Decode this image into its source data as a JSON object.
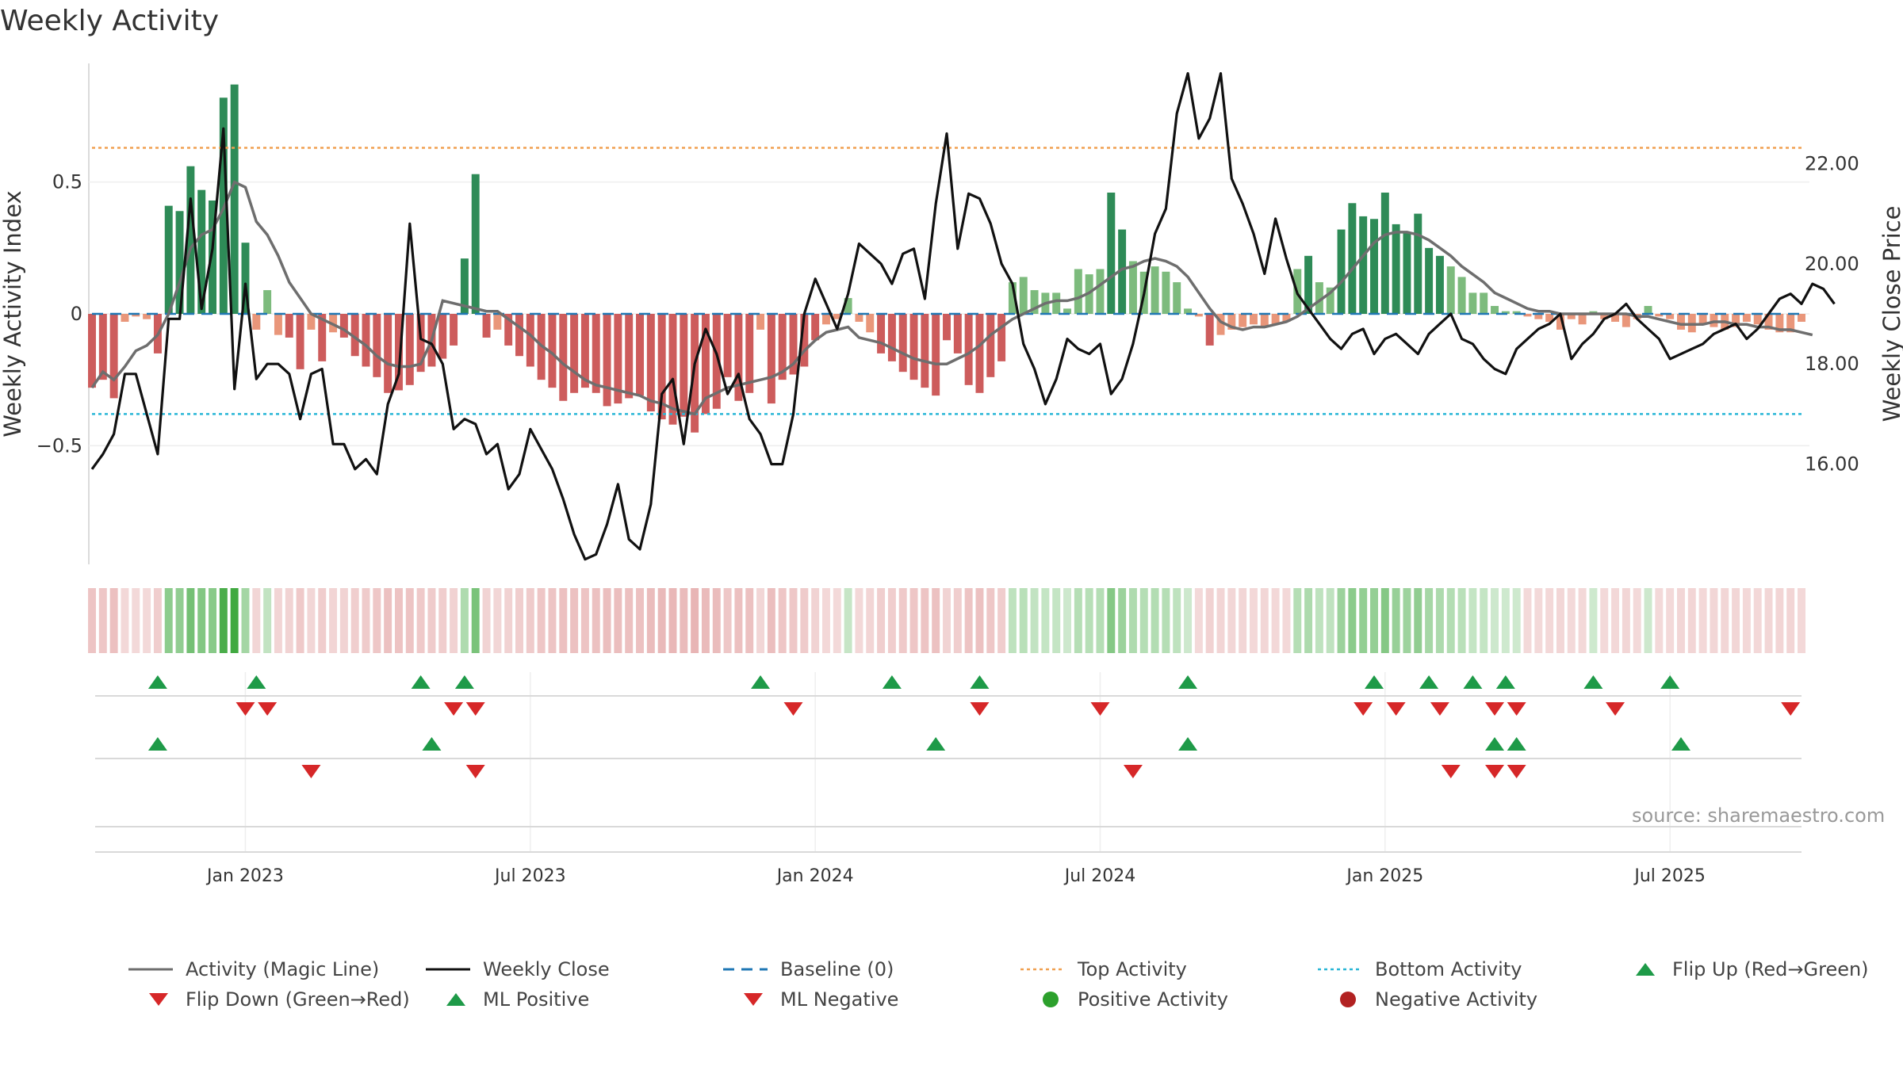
{
  "title": "Weekly Activity",
  "source": "source: sharemaestro.com",
  "colors": {
    "pos_dark": "#2e8b57",
    "pos_light": "#7dbb7d",
    "neg_dark": "#cd5c5c",
    "neg_light": "#e9967a",
    "magic_line": "#6e6e6e",
    "close_line": "#111111",
    "baseline": "#1f77b4",
    "top": "#f0a050",
    "bottom": "#29b6d6",
    "flip_up": "#1e9a48",
    "flip_down": "#d62728",
    "positive": "#2ca02c",
    "negative": "#b22222"
  },
  "chart_data": {
    "type": "bar",
    "title": "Weekly Activity",
    "ylabel": "Weekly Activity Index",
    "y2label": "Weekly Close Price",
    "ylim": [
      -0.95,
      0.95
    ],
    "y2lim": [
      14.0,
      24.0
    ],
    "y_ticks": [
      {
        "v": 0.5,
        "label": "0.5"
      },
      {
        "v": 0,
        "label": "0"
      },
      {
        "v": -0.5,
        "label": "−0.5"
      }
    ],
    "y2_ticks": [
      {
        "v": 22,
        "label": "22.00"
      },
      {
        "v": 20,
        "label": "20.00"
      },
      {
        "v": 18,
        "label": "18.00"
      },
      {
        "v": 16,
        "label": "16.00"
      }
    ],
    "x_ticks": [
      {
        "w": 14,
        "label": "Jan 2023"
      },
      {
        "w": 40,
        "label": "Jul 2023"
      },
      {
        "w": 66,
        "label": "Jan 2024"
      },
      {
        "w": 92,
        "label": "Jul 2024"
      },
      {
        "w": 118,
        "label": "Jan 2025"
      },
      {
        "w": 144,
        "label": "Jul 2025"
      }
    ],
    "n_weeks": 157,
    "top_activity": 0.63,
    "bottom_activity": -0.38,
    "activity": [
      -0.28,
      -0.25,
      -0.32,
      -0.03,
      -0.01,
      -0.02,
      -0.15,
      0.41,
      0.39,
      0.56,
      0.47,
      0.43,
      0.82,
      0.87,
      0.27,
      -0.06,
      0.09,
      -0.08,
      -0.09,
      -0.21,
      -0.06,
      -0.18,
      -0.07,
      -0.09,
      -0.16,
      -0.2,
      -0.24,
      -0.3,
      -0.29,
      -0.27,
      -0.22,
      -0.2,
      -0.17,
      -0.12,
      0.21,
      0.53,
      -0.09,
      -0.06,
      -0.12,
      -0.16,
      -0.2,
      -0.25,
      -0.28,
      -0.33,
      -0.3,
      -0.28,
      -0.3,
      -0.35,
      -0.34,
      -0.32,
      -0.31,
      -0.37,
      -0.4,
      -0.42,
      -0.39,
      -0.45,
      -0.38,
      -0.36,
      -0.24,
      -0.33,
      -0.3,
      -0.06,
      -0.34,
      -0.25,
      -0.23,
      -0.2,
      -0.1,
      -0.04,
      -0.02,
      0.06,
      -0.03,
      -0.07,
      -0.15,
      -0.18,
      -0.22,
      -0.25,
      -0.28,
      -0.31,
      -0.1,
      -0.15,
      -0.27,
      -0.3,
      -0.24,
      -0.18,
      0.12,
      0.14,
      0.09,
      0.08,
      0.08,
      0.02,
      0.17,
      0.15,
      0.17,
      0.46,
      0.32,
      0.2,
      0.16,
      0.18,
      0.16,
      0.12,
      0.02,
      -0.01,
      -0.12,
      -0.08,
      -0.06,
      -0.05,
      -0.04,
      -0.05,
      -0.04,
      -0.03,
      0.17,
      0.22,
      0.12,
      0.1,
      0.32,
      0.42,
      0.37,
      0.36,
      0.46,
      0.34,
      0.31,
      0.38,
      0.25,
      0.22,
      0.18,
      0.14,
      0.08,
      0.08,
      0.03,
      0.01,
      0.01,
      -0.01,
      -0.02,
      -0.03,
      -0.06,
      -0.02,
      -0.04,
      0.01,
      -0.02,
      -0.03,
      -0.05,
      -0.02,
      0.03,
      -0.01,
      -0.02,
      -0.06,
      -0.07,
      -0.04,
      -0.05,
      -0.06,
      -0.05,
      -0.03,
      -0.04,
      -0.06,
      -0.07,
      -0.07,
      -0.03
    ],
    "magic_line": [
      -0.28,
      -0.22,
      -0.25,
      -0.2,
      -0.14,
      -0.12,
      -0.08,
      0.0,
      0.12,
      0.25,
      0.3,
      0.32,
      0.4,
      0.5,
      0.48,
      0.35,
      0.3,
      0.22,
      0.12,
      0.06,
      0.0,
      -0.02,
      -0.04,
      -0.06,
      -0.09,
      -0.12,
      -0.16,
      -0.19,
      -0.2,
      -0.2,
      -0.19,
      -0.1,
      0.05,
      0.04,
      0.03,
      0.02,
      0.01,
      0.01,
      -0.02,
      -0.05,
      -0.08,
      -0.12,
      -0.15,
      -0.19,
      -0.22,
      -0.25,
      -0.27,
      -0.28,
      -0.29,
      -0.3,
      -0.31,
      -0.33,
      -0.34,
      -0.36,
      -0.37,
      -0.38,
      -0.32,
      -0.3,
      -0.28,
      -0.27,
      -0.26,
      -0.25,
      -0.24,
      -0.22,
      -0.19,
      -0.14,
      -0.1,
      -0.07,
      -0.06,
      -0.05,
      -0.09,
      -0.1,
      -0.11,
      -0.13,
      -0.15,
      -0.17,
      -0.18,
      -0.19,
      -0.19,
      -0.17,
      -0.15,
      -0.12,
      -0.08,
      -0.05,
      -0.02,
      0.0,
      0.02,
      0.04,
      0.05,
      0.05,
      0.06,
      0.08,
      0.11,
      0.14,
      0.17,
      0.18,
      0.2,
      0.21,
      0.2,
      0.18,
      0.14,
      0.08,
      0.02,
      -0.03,
      -0.05,
      -0.06,
      -0.05,
      -0.05,
      -0.04,
      -0.03,
      -0.01,
      0.02,
      0.05,
      0.08,
      0.12,
      0.17,
      0.22,
      0.27,
      0.3,
      0.31,
      0.31,
      0.3,
      0.28,
      0.25,
      0.22,
      0.18,
      0.15,
      0.12,
      0.08,
      0.06,
      0.04,
      0.02,
      0.01,
      0.01,
      0.0,
      0.0,
      0.0,
      0.0,
      0.0,
      0.0,
      0.0,
      -0.01,
      -0.01,
      -0.02,
      -0.03,
      -0.04,
      -0.04,
      -0.04,
      -0.03,
      -0.03,
      -0.04,
      -0.04,
      -0.05,
      -0.05,
      -0.06,
      -0.06,
      -0.07,
      -0.08
    ],
    "weekly_close": [
      15.9,
      16.2,
      16.6,
      17.8,
      17.8,
      17.0,
      16.2,
      18.9,
      18.9,
      21.3,
      19.1,
      20.3,
      22.7,
      17.5,
      19.6,
      17.7,
      18.0,
      18.0,
      17.8,
      16.9,
      17.8,
      17.9,
      16.4,
      16.4,
      15.9,
      16.1,
      15.8,
      17.2,
      17.8,
      20.8,
      18.5,
      18.4,
      18.0,
      16.7,
      16.9,
      16.8,
      16.2,
      16.4,
      15.5,
      15.8,
      16.7,
      16.3,
      15.9,
      15.3,
      14.6,
      14.1,
      14.2,
      14.8,
      15.6,
      14.5,
      14.3,
      15.2,
      17.4,
      17.7,
      16.4,
      18.0,
      18.7,
      18.2,
      17.4,
      17.8,
      16.9,
      16.6,
      16.0,
      16.0,
      17.0,
      19.0,
      19.7,
      19.2,
      18.7,
      19.4,
      20.4,
      20.2,
      20.0,
      19.6,
      20.2,
      20.3,
      19.3,
      21.2,
      22.6,
      20.3,
      21.4,
      21.3,
      20.8,
      20.0,
      19.6,
      18.4,
      17.9,
      17.2,
      17.7,
      18.5,
      18.3,
      18.2,
      18.4,
      17.4,
      17.7,
      18.4,
      19.4,
      20.6,
      21.1,
      23.0,
      23.8,
      22.5,
      22.9,
      23.8,
      21.7,
      21.2,
      20.6,
      19.8,
      20.9,
      20.1,
      19.4,
      19.1,
      18.8,
      18.5,
      18.3,
      18.6,
      18.7,
      18.2,
      18.5,
      18.6,
      18.4,
      18.2,
      18.6,
      18.8,
      19.0,
      18.5,
      18.4,
      18.1,
      17.9,
      17.8,
      18.3,
      18.5,
      18.7,
      18.8,
      19.0,
      18.1,
      18.4,
      18.6,
      18.9,
      19.0,
      19.2,
      18.9,
      18.7,
      18.5,
      18.1,
      18.2,
      18.3,
      18.4,
      18.6,
      18.7,
      18.8,
      18.5,
      18.7,
      19.0,
      19.3,
      19.4,
      19.2,
      19.6,
      19.5,
      19.2
    ],
    "flip_up": [
      6,
      15,
      30,
      34,
      61,
      73,
      81,
      100,
      117,
      122,
      126,
      129,
      137,
      144
    ],
    "flip_down": [
      14,
      16,
      33,
      35,
      64,
      81,
      92,
      116,
      119,
      123,
      128,
      130,
      139,
      155
    ],
    "ml_positive": [
      6,
      31,
      77,
      100,
      128,
      130,
      145
    ],
    "ml_negative": [
      20,
      35,
      95,
      124,
      128,
      130
    ]
  },
  "legend": [
    {
      "key": "magic",
      "label": "Activity (Magic Line)"
    },
    {
      "key": "close",
      "label": "Weekly Close"
    },
    {
      "key": "baseline",
      "label": "Baseline (0)"
    },
    {
      "key": "top",
      "label": "Top Activity"
    },
    {
      "key": "bottom",
      "label": "Bottom Activity"
    },
    {
      "key": "flipup",
      "label": "Flip Up (Red→Green)"
    },
    {
      "key": "flipdown",
      "label": "Flip Down (Green→Red)"
    },
    {
      "key": "mlpos",
      "label": "ML Positive"
    },
    {
      "key": "mlneg",
      "label": "ML Negative"
    },
    {
      "key": "posact",
      "label": "Positive Activity"
    },
    {
      "key": "negact",
      "label": "Negative Activity"
    }
  ]
}
